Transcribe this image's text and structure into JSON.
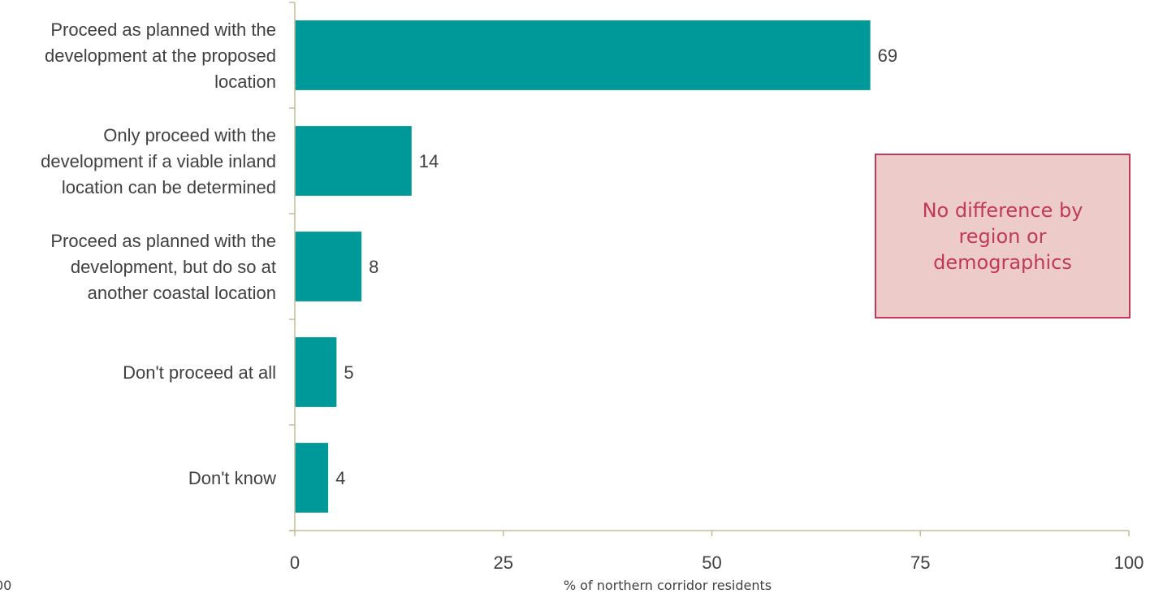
{
  "chart_data": {
    "type": "bar",
    "orientation": "horizontal",
    "categories": [
      "Proceed as planned with the\ndevelopment at the proposed\nlocation",
      "Only proceed with the\ndevelopment if a viable inland\nlocation can be determined",
      "Proceed as planned with the\ndevelopment, but do so at\nanother coastal location",
      "Don't proceed at all",
      "Don't know"
    ],
    "values": [
      69,
      14,
      8,
      5,
      4
    ],
    "xlabel": "% of northern corridor residents",
    "xlim": [
      0,
      100
    ],
    "xticks": [
      "0",
      "25",
      "50",
      "75",
      "100"
    ],
    "grid": false,
    "bar_color": "#009999",
    "axis_color": "#c4bd97"
  },
  "annotation": {
    "text": "No difference by\nregion or\ndemographics",
    "text_color": "#c0395a",
    "fill_color": "#eccbc8"
  },
  "corner_note": "00"
}
